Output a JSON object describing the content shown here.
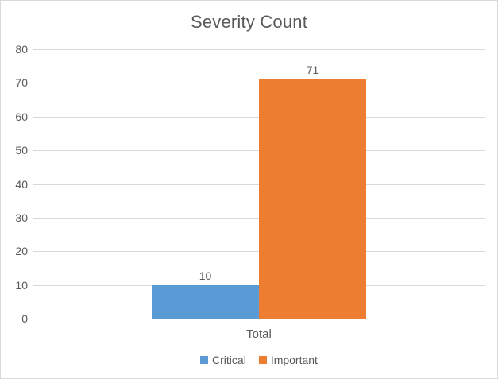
{
  "chart_data": {
    "type": "bar",
    "title": "Severity Count",
    "categories": [
      "Total"
    ],
    "series": [
      {
        "name": "Critical",
        "values": [
          10
        ],
        "color": "#5B9BD5"
      },
      {
        "name": "Important",
        "values": [
          71
        ],
        "color": "#ED7D31"
      }
    ],
    "ylim": [
      0,
      80
    ],
    "yticks": [
      0,
      10,
      20,
      30,
      40,
      50,
      60,
      70,
      80
    ],
    "grid": true,
    "legend_position": "bottom",
    "xlabel": "",
    "ylabel": ""
  },
  "colors": {
    "critical": "#5B9BD5",
    "important": "#ED7D31",
    "title_text": "#595959",
    "axis_text": "#595959",
    "gridline": "#D9D9D9",
    "axis_line": "#D0D0D0",
    "chart_border": "#D9D9D9",
    "background": "#FFFFFF"
  }
}
